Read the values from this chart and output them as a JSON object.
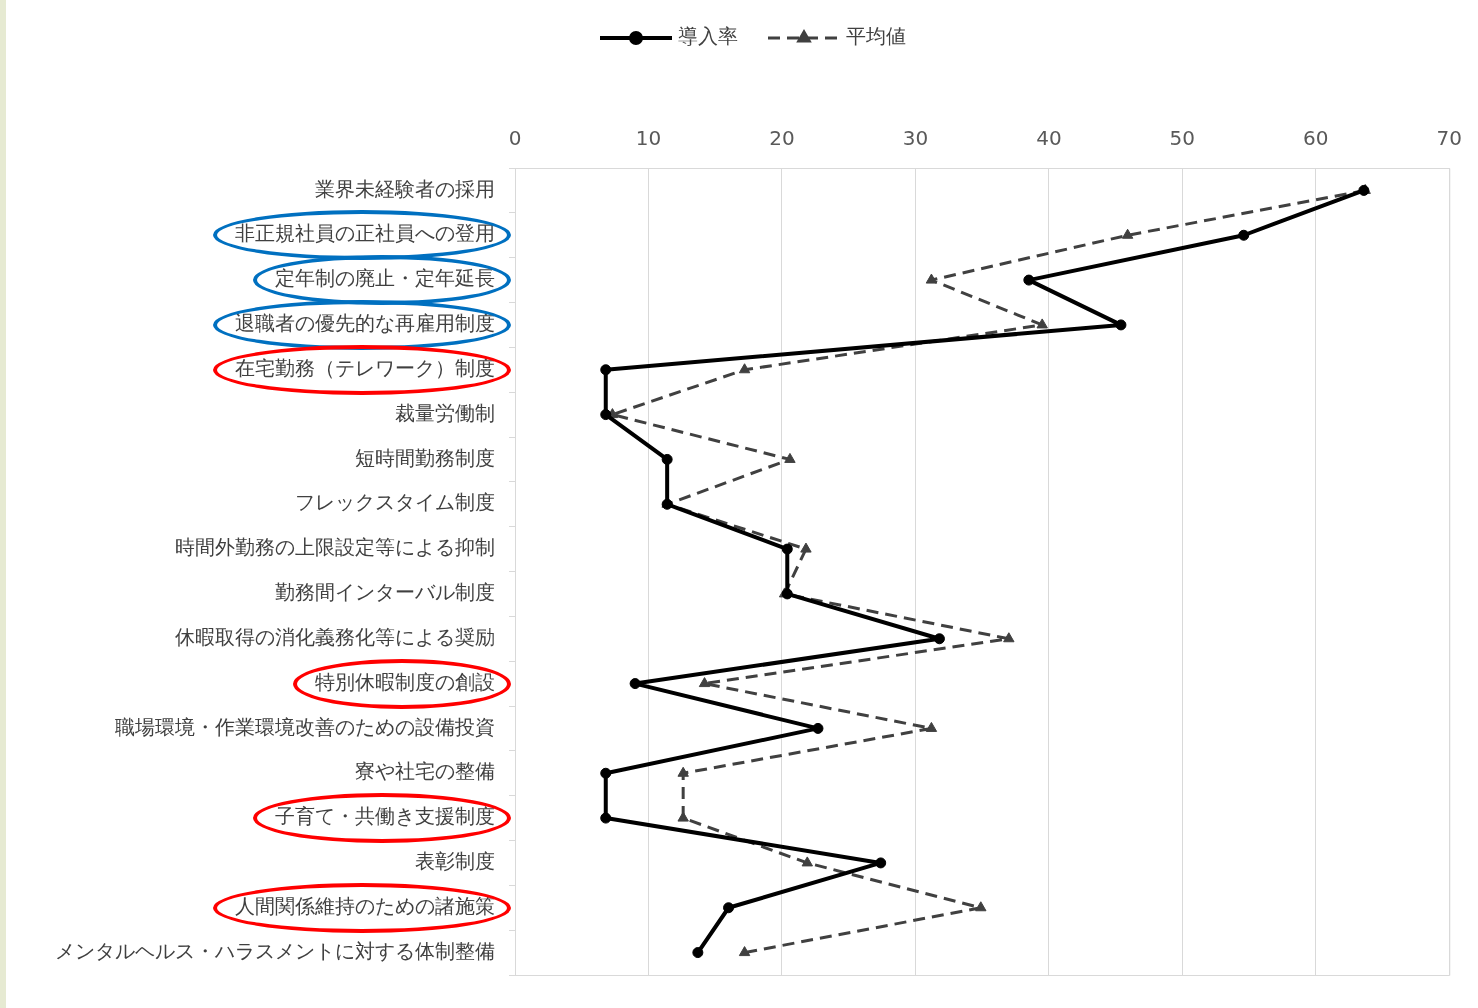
{
  "chart_data": {
    "type": "line",
    "orientation": "horizontal",
    "categories": [
      "業界未経験者の採用",
      "非正規社員の正社員への登用",
      "定年制の廃止・定年延長",
      "退職者の優先的な再雇用制度",
      "在宅勤務（テレワーク）制度",
      "裁量労働制",
      "短時間勤務制度",
      "フレックスタイム制度",
      "時間外勤務の上限設定等による抑制",
      "勤務間インターバル制度",
      "休暇取得の消化義務化等による奨励",
      "特別休暇制度の創設",
      "職場環境・作業環境改善のための設備投資",
      "寮や社宅の整備",
      "子育て・共働き支援制度",
      "表彰制度",
      "人間関係維持のための諸施策",
      "メンタルヘルス・ハラスメントに対する体制整備"
    ],
    "series": [
      {
        "name": "導入率",
        "color": "#000000",
        "marker": "circle",
        "line_style": "solid",
        "values": [
          63.6,
          54.6,
          38.5,
          45.4,
          6.8,
          6.8,
          11.4,
          11.4,
          20.4,
          20.4,
          31.8,
          9.0,
          22.7,
          6.8,
          6.8,
          27.4,
          16.0,
          13.7
        ]
      },
      {
        "name": "平均値",
        "color": "#404040",
        "marker": "triangle",
        "line_style": "dashed",
        "values": [
          63.7,
          45.9,
          31.2,
          39.5,
          17.2,
          7.3,
          20.6,
          11.4,
          21.8,
          20.2,
          37.0,
          14.2,
          31.2,
          12.6,
          12.6,
          21.9,
          34.9,
          17.2
        ]
      }
    ],
    "xlim": [
      0,
      70
    ],
    "xticks": [
      0,
      10,
      20,
      30,
      40,
      50,
      60,
      70
    ],
    "grid": "x",
    "legend": "top"
  }
}
